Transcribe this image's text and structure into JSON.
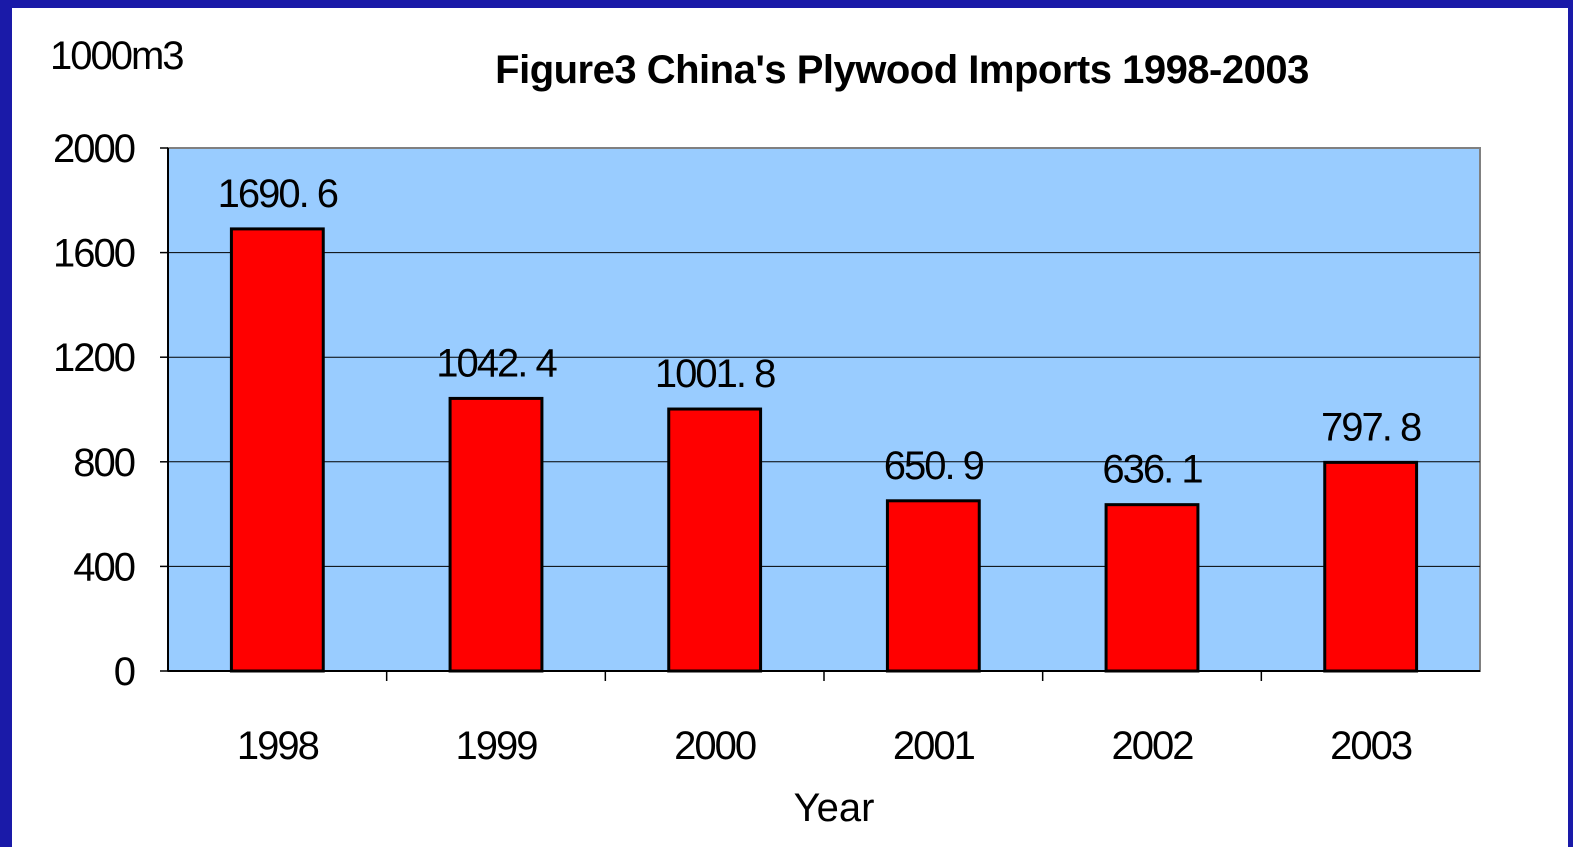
{
  "chart_data": {
    "type": "bar",
    "title": "Figure3  China's Plywood Imports 1998-2003",
    "ylabel": "1000m3",
    "xlabel": "Year",
    "categories": [
      "1998",
      "1999",
      "2000",
      "2001",
      "2002",
      "2003"
    ],
    "values": [
      1690.6,
      1042.4,
      1001.8,
      650.9,
      636.1,
      797.8
    ],
    "data_labels": [
      "1690. 6",
      "1042. 4",
      "1001. 8",
      "650. 9",
      "636. 1",
      "797. 8"
    ],
    "yticks": [
      "0",
      "400",
      "800",
      "1200",
      "1600",
      "2000"
    ],
    "ylim": [
      0,
      2000
    ],
    "grid": true,
    "colors": {
      "bar": "#ff0000",
      "plot_bg": "#99ccff",
      "frame": "#1a1aa8"
    }
  }
}
